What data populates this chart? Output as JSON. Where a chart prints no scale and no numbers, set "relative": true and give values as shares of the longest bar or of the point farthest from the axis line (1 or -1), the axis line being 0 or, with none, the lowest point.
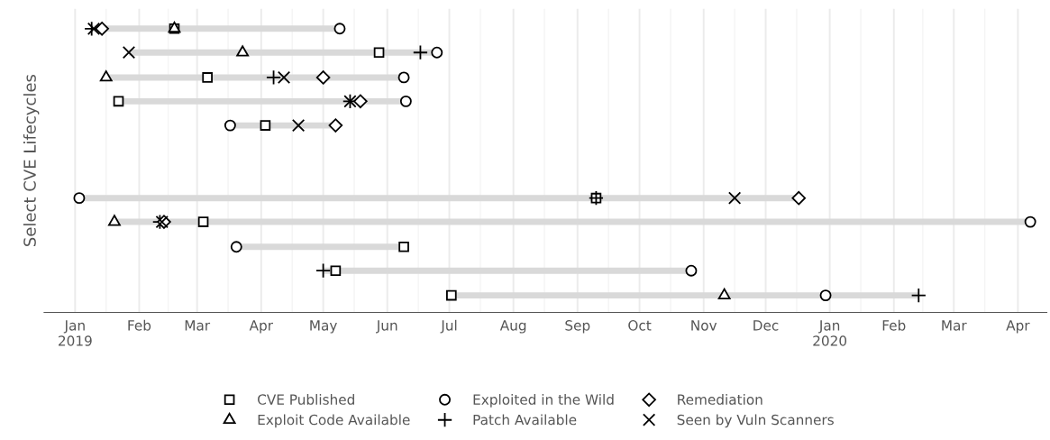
{
  "chart_data": {
    "type": "scatter",
    "ylabel": "Select CVE Lifecycles",
    "relative": true,
    "tick_labels": "x",
    "grid": "x",
    "legend": "bottom",
    "xlim": [
      "2018-12-17",
      "2020-04-15"
    ],
    "xticks": [
      {
        "value": "2019-01-01",
        "label": "Jan\n2019"
      },
      {
        "value": "2019-01-16",
        "label": null
      },
      {
        "value": "2019-02-01",
        "label": "Feb"
      },
      {
        "value": "2019-02-15",
        "label": null
      },
      {
        "value": "2019-03-01",
        "label": "Mar"
      },
      {
        "value": "2019-03-16",
        "label": null
      },
      {
        "value": "2019-04-01",
        "label": "Apr"
      },
      {
        "value": "2019-04-16",
        "label": null
      },
      {
        "value": "2019-05-01",
        "label": "May"
      },
      {
        "value": "2019-05-16",
        "label": null
      },
      {
        "value": "2019-06-01",
        "label": "Jun"
      },
      {
        "value": "2019-06-16",
        "label": null
      },
      {
        "value": "2019-07-01",
        "label": "Jul"
      },
      {
        "value": "2019-07-16",
        "label": null
      },
      {
        "value": "2019-08-01",
        "label": "Aug"
      },
      {
        "value": "2019-08-16",
        "label": null
      },
      {
        "value": "2019-09-01",
        "label": "Sep"
      },
      {
        "value": "2019-09-16",
        "label": null
      },
      {
        "value": "2019-10-01",
        "label": "Oct"
      },
      {
        "value": "2019-10-16",
        "label": null
      },
      {
        "value": "2019-11-01",
        "label": "Nov"
      },
      {
        "value": "2019-11-16",
        "label": null
      },
      {
        "value": "2019-12-01",
        "label": "Dec"
      },
      {
        "value": "2019-12-16",
        "label": null
      },
      {
        "value": "2020-01-01",
        "label": "Jan\n2020"
      },
      {
        "value": "2020-01-16",
        "label": null
      },
      {
        "value": "2020-02-01",
        "label": "Feb"
      },
      {
        "value": "2020-02-15",
        "label": null
      },
      {
        "value": "2020-03-01",
        "label": "Mar"
      },
      {
        "value": "2020-03-16",
        "label": null
      },
      {
        "value": "2020-04-01",
        "label": "Apr"
      }
    ],
    "series": [
      {
        "type": "line",
        "color": "#d9d9d9",
        "x": [
          "2019-01-09",
          "2019-05-09"
        ],
        "values": [
          1.0,
          1.0
        ]
      },
      {
        "type": "line",
        "color": "#d9d9d9",
        "x": [
          "2019-01-27",
          "2019-06-25"
        ],
        "values": [
          0.916,
          0.916
        ]
      },
      {
        "type": "line",
        "color": "#d9d9d9",
        "x": [
          "2019-01-16",
          "2019-06-09"
        ],
        "values": [
          0.828,
          0.828
        ]
      },
      {
        "type": "line",
        "color": "#d9d9d9",
        "x": [
          "2019-01-22",
          "2019-06-10"
        ],
        "values": [
          0.744,
          0.744
        ]
      },
      {
        "type": "line",
        "color": "#d9d9d9",
        "x": [
          "2019-03-17",
          "2019-05-07"
        ],
        "values": [
          0.659,
          0.659
        ]
      },
      {
        "type": "line",
        "color": "#d9d9d9",
        "x": [
          "2019-01-03",
          "2019-12-17"
        ],
        "values": [
          0.403,
          0.403
        ]
      },
      {
        "type": "line",
        "color": "#d9d9d9",
        "x": [
          "2019-01-20",
          "2020-04-07"
        ],
        "values": [
          0.319,
          0.319
        ]
      },
      {
        "type": "line",
        "color": "#d9d9d9",
        "x": [
          "2019-03-20",
          "2019-06-09"
        ],
        "values": [
          0.231,
          0.231
        ]
      },
      {
        "type": "line",
        "color": "#d9d9d9",
        "x": [
          "2019-05-01",
          "2019-10-26"
        ],
        "values": [
          0.147,
          0.147
        ]
      },
      {
        "type": "line",
        "color": "#d9d9d9",
        "x": [
          "2019-07-02",
          "2020-02-13"
        ],
        "values": [
          0.06,
          0.06
        ]
      },
      {
        "name": "CVE Published",
        "marker": "square",
        "color": "#000000",
        "x": [
          "2019-02-18",
          "2019-05-28",
          "2019-03-06",
          "2019-01-22",
          "2019-04-03",
          "2019-09-10",
          "2019-03-04",
          "2019-06-09",
          "2019-05-07",
          "2019-07-02"
        ],
        "values": [
          1.0,
          0.916,
          0.828,
          0.744,
          0.659,
          0.403,
          0.319,
          0.231,
          0.147,
          0.06
        ]
      },
      {
        "name": "Exploit Code Available",
        "marker": "triangle",
        "color": "#000000",
        "x": [
          "2019-02-18",
          "2019-03-23",
          "2019-01-16",
          "2019-01-20",
          "2019-11-11"
        ],
        "values": [
          1.0,
          0.916,
          0.828,
          0.319,
          0.06
        ]
      },
      {
        "name": "Exploited in the Wild",
        "marker": "circle",
        "color": "#000000",
        "x": [
          "2019-05-09",
          "2019-06-25",
          "2019-06-09",
          "2019-06-10",
          "2019-03-17",
          "2019-01-03",
          "2020-04-07",
          "2019-03-20",
          "2019-10-26",
          "2019-12-30"
        ],
        "values": [
          1.0,
          0.916,
          0.828,
          0.744,
          0.659,
          0.403,
          0.319,
          0.231,
          0.147,
          0.06
        ]
      },
      {
        "name": "Patch Available",
        "marker": "plus",
        "color": "#000000",
        "x": [
          "2019-01-09",
          "2019-06-17",
          "2019-04-07",
          "2019-05-14",
          "2019-09-10",
          "2019-02-11",
          "2019-05-01",
          "2020-02-13"
        ],
        "values": [
          1.0,
          0.916,
          0.828,
          0.744,
          0.403,
          0.319,
          0.147,
          0.06
        ]
      },
      {
        "name": "Remediation",
        "marker": "diamond",
        "color": "#000000",
        "x": [
          "2019-01-14",
          "2019-05-01",
          "2019-05-19",
          "2019-05-07",
          "2019-12-17",
          "2019-02-13"
        ],
        "values": [
          1.0,
          0.828,
          0.744,
          0.659,
          0.403,
          0.319
        ]
      },
      {
        "name": "Seen by Vuln Scanners",
        "marker": "cross",
        "color": "#000000",
        "x": [
          "2019-01-10",
          "2019-01-27",
          "2019-04-12",
          "2019-05-14",
          "2019-04-19",
          "2019-11-16",
          "2019-02-12"
        ],
        "values": [
          1.0,
          0.916,
          0.828,
          0.744,
          0.659,
          0.403,
          0.319
        ]
      }
    ]
  }
}
